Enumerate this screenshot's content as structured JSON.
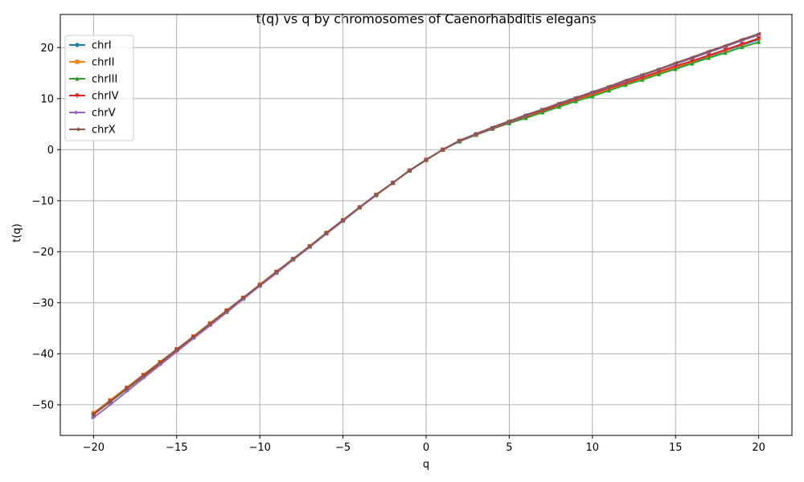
{
  "chart_data": {
    "type": "line",
    "title": "t(q) vs q by chromosomes of Caenorhabditis elegans",
    "xlabel": "q",
    "ylabel": "t(q)",
    "xlim": [
      -22,
      22
    ],
    "ylim": [
      -56,
      26.5
    ],
    "xticks": [
      -20,
      -15,
      -10,
      -5,
      0,
      5,
      10,
      15,
      20
    ],
    "yticks": [
      -50,
      -40,
      -30,
      -20,
      -10,
      0,
      10,
      20
    ],
    "xtick_labels": [
      "−20",
      "−15",
      "−10",
      "−5",
      "0",
      "5",
      "10",
      "15",
      "20"
    ],
    "ytick_labels": [
      "−50",
      "−40",
      "−30",
      "−20",
      "−10",
      "0",
      "10",
      "20"
    ],
    "grid": true,
    "legend_position": "top-left",
    "x": [
      -20,
      -19,
      -18,
      -17,
      -16,
      -15,
      -14,
      -13,
      -12,
      -11,
      -10,
      -9,
      -8,
      -7,
      -6,
      -5,
      -4,
      -3,
      -2,
      -1,
      0,
      1,
      2,
      3,
      4,
      5,
      6,
      7,
      8,
      9,
      10,
      11,
      12,
      13,
      14,
      15,
      16,
      17,
      18,
      19,
      20
    ],
    "series": [
      {
        "name": "chrI",
        "color": "#1f77b4",
        "marker": "circle",
        "values": [
          -51.9,
          -49.4,
          -46.9,
          -44.4,
          -41.9,
          -39.3,
          -36.8,
          -34.3,
          -31.7,
          -29.2,
          -26.6,
          -24.0,
          -21.5,
          -18.9,
          -16.4,
          -13.9,
          -11.3,
          -8.9,
          -6.5,
          -4.1,
          -2.0,
          0.0,
          1.7,
          3.0,
          4.2,
          5.3,
          6.5,
          7.6,
          8.6,
          9.7,
          10.8,
          11.9,
          12.9,
          14.0,
          15.0,
          16.1,
          17.2,
          18.3,
          19.4,
          20.5,
          21.6
        ]
      },
      {
        "name": "chrII",
        "color": "#ff7f0e",
        "marker": "square",
        "values": [
          -51.6,
          -49.1,
          -46.6,
          -44.1,
          -41.6,
          -39.1,
          -36.6,
          -34.0,
          -31.5,
          -29.0,
          -26.4,
          -23.9,
          -21.4,
          -18.9,
          -16.3,
          -13.8,
          -11.3,
          -8.8,
          -6.5,
          -4.1,
          -2.0,
          0.0,
          1.7,
          3.0,
          4.2,
          5.4,
          6.5,
          7.6,
          8.6,
          9.7,
          10.8,
          11.9,
          13.0,
          14.0,
          15.1,
          16.2,
          17.3,
          18.4,
          19.5,
          20.7,
          21.8
        ]
      },
      {
        "name": "chrIII",
        "color": "#2ca02c",
        "marker": "triangle-up",
        "values": [
          -51.9,
          -49.4,
          -46.9,
          -44.4,
          -41.9,
          -39.3,
          -36.8,
          -34.3,
          -31.8,
          -29.2,
          -26.6,
          -24.1,
          -21.5,
          -19.0,
          -16.4,
          -13.9,
          -11.3,
          -8.9,
          -6.5,
          -4.1,
          -2.0,
          0.0,
          1.6,
          2.9,
          4.1,
          5.2,
          6.2,
          7.3,
          8.4,
          9.5,
          10.5,
          11.6,
          12.7,
          13.7,
          14.8,
          15.8,
          16.9,
          18.0,
          19.0,
          20.1,
          21.1
        ]
      },
      {
        "name": "chrIV",
        "color": "#d62728",
        "marker": "triangle-down",
        "values": [
          -51.9,
          -49.3,
          -46.8,
          -44.3,
          -41.8,
          -39.2,
          -36.7,
          -34.2,
          -31.6,
          -29.1,
          -26.6,
          -24.0,
          -21.5,
          -19.0,
          -16.4,
          -13.9,
          -11.3,
          -8.9,
          -6.5,
          -4.1,
          -2.0,
          0.0,
          1.7,
          3.0,
          4.2,
          5.4,
          6.6,
          7.7,
          8.8,
          9.9,
          11.0,
          12.1,
          13.1,
          14.2,
          15.3,
          16.4,
          17.4,
          18.5,
          19.6,
          20.7,
          21.8
        ]
      },
      {
        "name": "chrV",
        "color": "#9467bd",
        "marker": "triangle-right",
        "values": [
          -52.5,
          -50.0,
          -47.4,
          -44.8,
          -42.2,
          -39.6,
          -37.0,
          -34.5,
          -31.9,
          -29.3,
          -26.7,
          -24.2,
          -21.6,
          -19.1,
          -16.5,
          -14.0,
          -11.4,
          -8.9,
          -6.5,
          -4.1,
          -2.0,
          0.0,
          1.7,
          3.0,
          4.3,
          5.5,
          6.7,
          7.9,
          9.0,
          10.1,
          11.2,
          12.3,
          13.4,
          14.6,
          15.7,
          16.8,
          17.9,
          19.1,
          20.2,
          21.4,
          22.5
        ]
      },
      {
        "name": "chrX",
        "color": "#8c564b",
        "marker": "triangle-left",
        "values": [
          -51.8,
          -49.3,
          -46.8,
          -44.2,
          -41.7,
          -39.2,
          -36.7,
          -34.1,
          -31.6,
          -29.0,
          -26.5,
          -23.9,
          -21.4,
          -18.9,
          -16.3,
          -13.8,
          -11.3,
          -8.8,
          -6.5,
          -4.1,
          -2.0,
          0.0,
          1.8,
          3.1,
          4.4,
          5.6,
          6.8,
          7.9,
          9.1,
          10.2,
          11.3,
          12.4,
          13.6,
          14.7,
          15.8,
          17.0,
          18.1,
          19.3,
          20.4,
          21.6,
          22.7
        ]
      }
    ]
  }
}
